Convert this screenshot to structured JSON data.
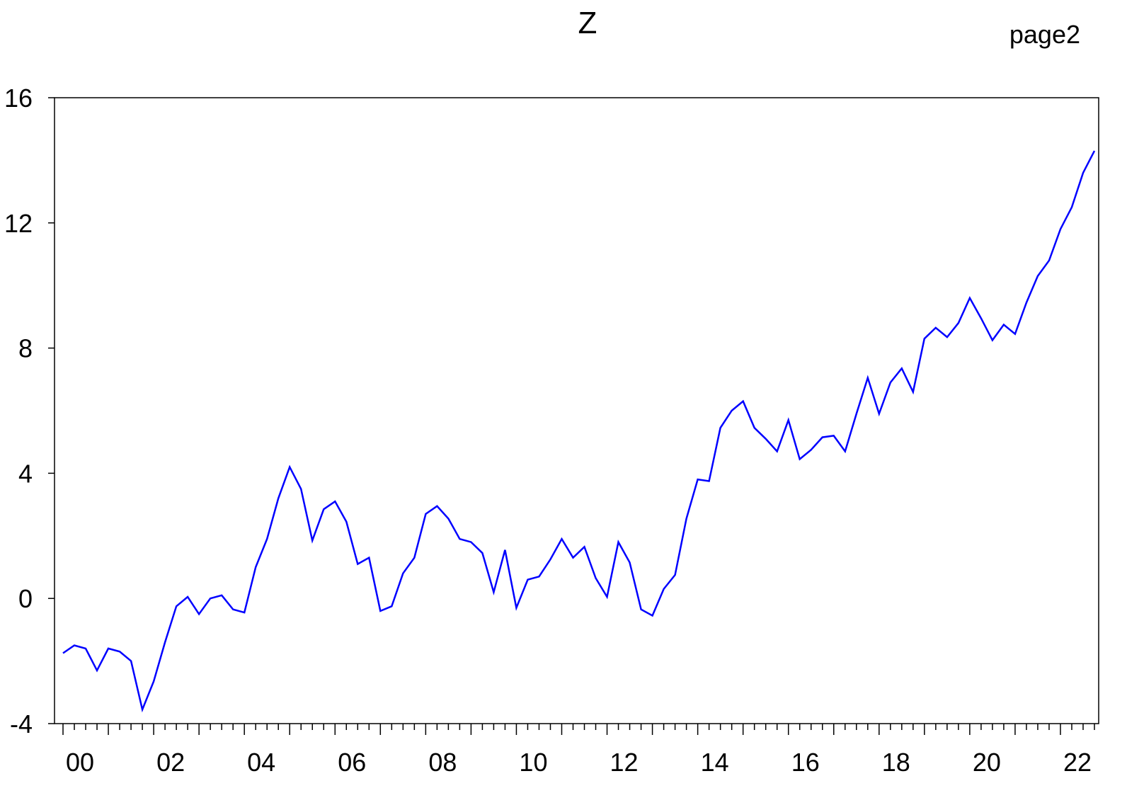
{
  "chart_data": {
    "type": "line",
    "title": "Z",
    "corner_label": "page2",
    "xlabel": "",
    "ylabel": "",
    "ylim": [
      -4,
      16
    ],
    "yticks": [
      -4,
      0,
      4,
      8,
      12,
      16
    ],
    "ytick_labels": [
      "-4",
      "0",
      "4",
      "8",
      "12",
      "16"
    ],
    "xtick_labels": [
      "00",
      "02",
      "04",
      "06",
      "08",
      "10",
      "12",
      "14",
      "16",
      "18",
      "20",
      "22"
    ],
    "x_start": "2000Q1",
    "frequency": "quarterly",
    "grid": false,
    "color": "#0000ff",
    "series": [
      {
        "values": [
          -1.75,
          -1.5,
          -1.6,
          -2.3,
          -1.6,
          -1.7,
          -2.0,
          -3.55,
          -2.65,
          -1.4,
          -0.25,
          0.05,
          -0.5,
          0.0,
          0.1,
          -0.35,
          -0.45,
          1.0,
          1.9,
          3.2,
          4.2,
          3.5,
          1.85,
          2.85,
          3.1,
          2.45,
          1.1,
          1.3,
          -0.4,
          -0.25,
          0.8,
          1.3,
          2.7,
          2.95,
          2.55,
          1.9,
          1.8,
          1.45,
          0.2,
          1.55,
          -0.3,
          0.6,
          0.7,
          1.25,
          1.9,
          1.3,
          1.65,
          0.65,
          0.05,
          1.8,
          1.15,
          -0.35,
          -0.55,
          0.3,
          0.75,
          2.55,
          3.8,
          3.75,
          5.45,
          6.0,
          6.3,
          5.45,
          5.1,
          4.7,
          5.7,
          4.45,
          4.75,
          5.15,
          5.2,
          4.7,
          5.9,
          7.05,
          5.9,
          6.9,
          7.35,
          6.6,
          8.3,
          8.65,
          8.35,
          8.8,
          9.6,
          8.95,
          8.25,
          8.75,
          8.45,
          9.45,
          10.3,
          10.8,
          11.8,
          12.5,
          13.6,
          14.3
        ]
      }
    ]
  }
}
